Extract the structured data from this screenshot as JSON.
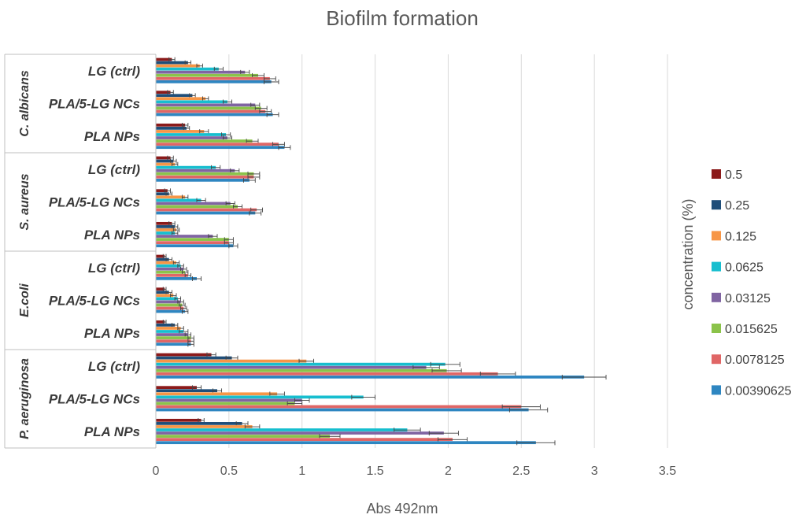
{
  "chart_data": {
    "type": "bar",
    "orientation": "horizontal",
    "title": "Biofilm formation",
    "xlabel": "Abs 492nm",
    "legend_title": "concentration (%)",
    "xlim": [
      0,
      3.5
    ],
    "x_ticks": [
      "0",
      "0.5",
      "1",
      "1.5",
      "2",
      "2.5",
      "3",
      "3.5"
    ],
    "grid": "vertical",
    "legend_position": "right",
    "groups": [
      {
        "name": "C. albicans",
        "categories": [
          "LG (ctrl)",
          "PLA/5-LG NCs",
          "PLA NPs"
        ]
      },
      {
        "name": "S. aureus",
        "categories": [
          "LG (ctrl)",
          "PLA/5-LG NCs",
          "PLA NPs"
        ]
      },
      {
        "name": "E.coli",
        "categories": [
          "LG (ctrl)",
          "PLA/5-LG NCs",
          "PLA NPs"
        ]
      },
      {
        "name": "P. aeruginosa",
        "categories": [
          "LG (ctrl)",
          "PLA/5-LG NCs",
          "PLA NPs"
        ]
      }
    ],
    "series": [
      {
        "name": "0.5",
        "color": "#8B1A1A",
        "values": [
          0.11,
          0.1,
          0.2,
          0.1,
          0.08,
          0.11,
          0.06,
          0.06,
          0.06,
          0.38,
          0.28,
          0.31
        ],
        "errors": [
          0.02,
          0.02,
          0.02,
          0.02,
          0.02,
          0.02,
          0.01,
          0.01,
          0.01,
          0.03,
          0.03,
          0.02
        ]
      },
      {
        "name": "0.25",
        "color": "#1F4E79",
        "values": [
          0.22,
          0.25,
          0.21,
          0.12,
          0.09,
          0.13,
          0.09,
          0.09,
          0.13,
          0.52,
          0.42,
          0.59
        ],
        "errors": [
          0.02,
          0.02,
          0.02,
          0.02,
          0.02,
          0.02,
          0.02,
          0.02,
          0.02,
          0.04,
          0.03,
          0.04
        ]
      },
      {
        "name": "0.125",
        "color": "#F79646",
        "values": [
          0.3,
          0.34,
          0.33,
          0.13,
          0.2,
          0.14,
          0.14,
          0.12,
          0.17,
          1.03,
          0.83,
          0.66
        ],
        "errors": [
          0.02,
          0.02,
          0.03,
          0.02,
          0.02,
          0.02,
          0.02,
          0.02,
          0.02,
          0.05,
          0.05,
          0.05
        ]
      },
      {
        "name": "0.0625",
        "color": "#17BECF",
        "values": [
          0.43,
          0.49,
          0.48,
          0.41,
          0.31,
          0.13,
          0.17,
          0.15,
          0.19,
          1.98,
          1.42,
          1.72
        ],
        "errors": [
          0.03,
          0.03,
          0.03,
          0.03,
          0.03,
          0.02,
          0.02,
          0.02,
          0.03,
          0.1,
          0.08,
          0.09
        ]
      },
      {
        "name": "0.03125",
        "color": "#8064A2",
        "values": [
          0.61,
          0.68,
          0.49,
          0.54,
          0.51,
          0.39,
          0.19,
          0.17,
          0.22,
          1.85,
          1.0,
          1.97
        ],
        "errors": [
          0.03,
          0.03,
          0.03,
          0.03,
          0.03,
          0.03,
          0.02,
          0.02,
          0.02,
          0.09,
          0.05,
          0.1
        ]
      },
      {
        "name": "0.015625",
        "color": "#8BC34A",
        "values": [
          0.7,
          0.72,
          0.66,
          0.67,
          0.56,
          0.5,
          0.2,
          0.18,
          0.24,
          1.99,
          0.95,
          1.19
        ],
        "errors": [
          0.04,
          0.04,
          0.04,
          0.04,
          0.03,
          0.03,
          0.02,
          0.02,
          0.02,
          0.1,
          0.05,
          0.07
        ]
      },
      {
        "name": "0.0078125",
        "color": "#E06666",
        "values": [
          0.78,
          0.75,
          0.84,
          0.67,
          0.69,
          0.5,
          0.22,
          0.19,
          0.24,
          2.34,
          2.5,
          2.03
        ],
        "errors": [
          0.04,
          0.04,
          0.04,
          0.04,
          0.04,
          0.03,
          0.02,
          0.02,
          0.02,
          0.12,
          0.13,
          0.1
        ]
      },
      {
        "name": "0.00390625",
        "color": "#2E86C1",
        "values": [
          0.79,
          0.8,
          0.88,
          0.64,
          0.68,
          0.53,
          0.28,
          0.2,
          0.24,
          2.93,
          2.55,
          2.6
        ],
        "errors": [
          0.05,
          0.04,
          0.04,
          0.04,
          0.04,
          0.03,
          0.03,
          0.02,
          0.02,
          0.15,
          0.13,
          0.13
        ]
      }
    ]
  }
}
